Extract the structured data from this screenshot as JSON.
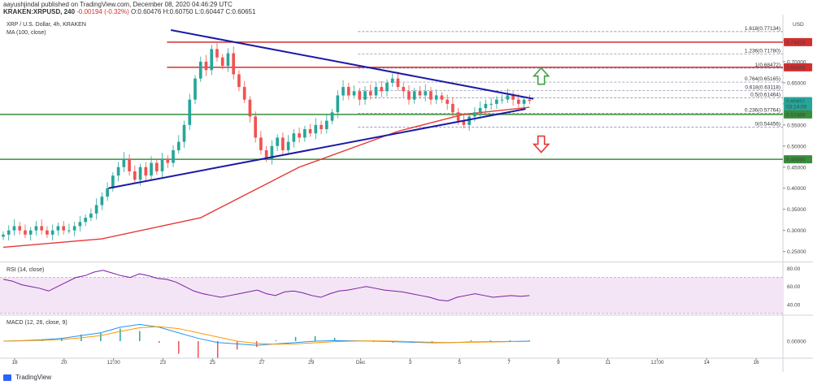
{
  "header": {
    "published": "aayushjindal published on TradingView.com, December 08, 2020 04:46:29 UTC",
    "symbol": "KRAKEN:XRPUSD, 240",
    "change": "-0.00194 (-0.32%)",
    "ohlc": "O:0.60476 H:0.60750 L:0.60447 C:0.60651"
  },
  "footer": {
    "brand": "TradingView"
  },
  "colors": {
    "up": "#26a69a",
    "down": "#ef5350",
    "trend": "#1a1aa6",
    "ma": "#e53935",
    "support": "#388e3c",
    "resistance": "#d32f2f",
    "fib": "#7b7fa8",
    "rsi": "#7b1fa2",
    "macd": "#2196f3",
    "signal": "#ff9800"
  },
  "chart_data": [
    {
      "type": "candlestick",
      "title": "XRP / U.S. Dollar, 4h, KRAKEN",
      "indicator": "MA (100, close)",
      "currency": "USD",
      "y_range": [
        0.23,
        0.8
      ],
      "y_ticks": [
        "0.75000",
        "0.70000",
        "0.65000",
        "0.60000",
        "0.55000",
        "0.50000",
        "0.45000",
        "0.40000",
        "0.35000",
        "0.30000",
        "0.25000"
      ],
      "x_ticks": [
        "18",
        "20",
        "12:00",
        "23",
        "25",
        "27",
        "29",
        "Dec",
        "3",
        "5",
        "7",
        "9",
        "11",
        "12:00",
        "14",
        "16"
      ],
      "price_labels": [
        {
          "text": "0.74628",
          "value": 0.74628,
          "kind": "resistance"
        },
        {
          "text": "0.68658",
          "value": 0.68658,
          "kind": "resistance"
        },
        {
          "text": "0.60651",
          "value": 0.60651,
          "kind": "last"
        },
        {
          "text": "03:14:00",
          "value": 0.5935,
          "kind": "countdown"
        },
        {
          "text": "0.57489",
          "value": 0.57489,
          "kind": "support"
        },
        {
          "text": "0.46860",
          "value": 0.4686,
          "kind": "support"
        }
      ],
      "fib_levels": [
        {
          "label": "1.618(0.77134)",
          "value": 0.77134
        },
        {
          "label": "1.236(0.71780)",
          "value": 0.7178
        },
        {
          "label": "1(0.68472)",
          "value": 0.68472
        },
        {
          "label": "0.764(0.65165)",
          "value": 0.65165
        },
        {
          "label": "0.618(0.63118)",
          "value": 0.63118
        },
        {
          "label": "0.5(0.61464)",
          "value": 0.61464
        },
        {
          "label": "0.236(0.57764)",
          "value": 0.57764
        },
        {
          "label": "0(0.54456)",
          "value": 0.54456
        }
      ],
      "close_path": [
        0.29,
        0.3,
        0.31,
        0.3,
        0.29,
        0.3,
        0.31,
        0.3,
        0.29,
        0.3,
        0.31,
        0.3,
        0.3,
        0.31,
        0.32,
        0.33,
        0.34,
        0.36,
        0.38,
        0.4,
        0.43,
        0.45,
        0.47,
        0.44,
        0.42,
        0.45,
        0.43,
        0.46,
        0.44,
        0.47,
        0.46,
        0.49,
        0.51,
        0.55,
        0.61,
        0.66,
        0.7,
        0.68,
        0.73,
        0.71,
        0.69,
        0.72,
        0.67,
        0.64,
        0.61,
        0.57,
        0.52,
        0.49,
        0.47,
        0.5,
        0.52,
        0.49,
        0.51,
        0.53,
        0.52,
        0.54,
        0.53,
        0.55,
        0.54,
        0.56,
        0.58,
        0.62,
        0.64,
        0.62,
        0.63,
        0.61,
        0.63,
        0.62,
        0.64,
        0.63,
        0.65,
        0.66,
        0.64,
        0.63,
        0.61,
        0.63,
        0.62,
        0.63,
        0.61,
        0.62,
        0.61,
        0.6,
        0.58,
        0.56,
        0.55,
        0.57,
        0.58,
        0.59,
        0.6,
        0.6,
        0.61,
        0.61,
        0.62,
        0.61,
        0.6,
        0.61,
        0.607
      ],
      "ma_100": [
        [
          0,
          0.26
        ],
        [
          30,
          0.28
        ],
        [
          60,
          0.33
        ],
        [
          90,
          0.45
        ],
        [
          120,
          0.535
        ],
        [
          140,
          0.575
        ],
        [
          160,
          0.592
        ]
      ],
      "trendlines": [
        {
          "from": [
            0.215,
            0.775
          ],
          "to": [
            0.68,
            0.612
          ]
        },
        {
          "from": [
            0.135,
            0.4
          ],
          "to": [
            0.67,
            0.588
          ]
        }
      ],
      "arrows": [
        {
          "dir": "up",
          "color": "#43a047"
        },
        {
          "dir": "down",
          "color": "#e53935"
        }
      ]
    },
    {
      "type": "line",
      "title": "RSI (14, close)",
      "y_ticks": [
        "80.00",
        "60.00",
        "40.00"
      ],
      "band": [
        30,
        70
      ],
      "values": [
        68,
        66,
        62,
        60,
        58,
        55,
        60,
        65,
        70,
        72,
        76,
        78,
        75,
        72,
        70,
        74,
        72,
        69,
        68,
        65,
        60,
        55,
        52,
        50,
        48,
        50,
        52,
        54,
        56,
        52,
        50,
        54,
        55,
        53,
        50,
        48,
        52,
        55,
        56,
        58,
        60,
        58,
        56,
        55,
        54,
        52,
        50,
        48,
        45,
        44,
        48,
        50,
        52,
        50,
        48,
        49,
        50,
        49,
        50
      ]
    },
    {
      "type": "line",
      "title": "MACD (12, 26, close, 9)",
      "y_ticks": [
        "0.00000"
      ],
      "macd": [
        0,
        0.002,
        0.005,
        0.01,
        0.02,
        0.03,
        0.05,
        0.06,
        0.05,
        0.03,
        0.01,
        -0.005,
        -0.01,
        -0.015,
        -0.01,
        -0.005,
        0,
        0.002,
        0.001,
        0,
        -0.002,
        -0.004,
        -0.006,
        -0.005,
        -0.003,
        -0.002,
        -0.001,
        0
      ],
      "signal": [
        0,
        0.001,
        0.003,
        0.006,
        0.012,
        0.02,
        0.035,
        0.048,
        0.052,
        0.045,
        0.03,
        0.015,
        0,
        -0.008,
        -0.011,
        -0.01,
        -0.006,
        -0.002,
        0,
        0.001,
        0,
        -0.002,
        -0.004,
        -0.005,
        -0.004,
        -0.003,
        -0.002,
        -0.001
      ]
    }
  ]
}
